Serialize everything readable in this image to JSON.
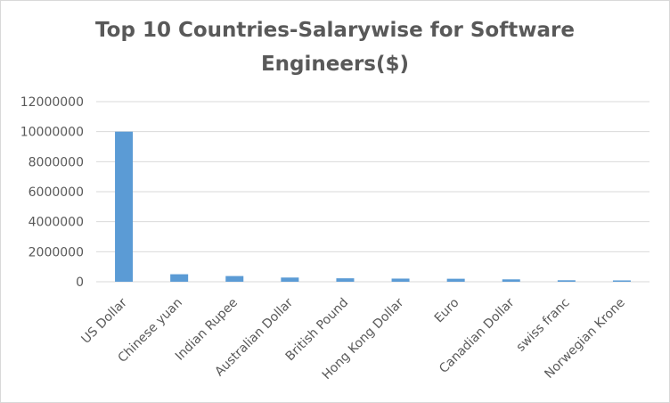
{
  "chart_data": {
    "type": "bar",
    "title": "Top 10 Countries-Salarywise for Software Engineers($)",
    "xlabel": "",
    "ylabel": "",
    "ylim": [
      0,
      12000000
    ],
    "yticks": [
      0,
      2000000,
      4000000,
      6000000,
      8000000,
      10000000,
      12000000
    ],
    "ytick_labels": [
      "0",
      "2000000",
      "4000000",
      "6000000",
      "8000000",
      "10000000",
      "12000000"
    ],
    "grid": true,
    "bar_color": "#5b9bd5",
    "categories": [
      "US Dollar",
      "Chinese yuan",
      "Indian Rupee",
      "Australian Dollar",
      "British Pound",
      "Hong Kong Dollar",
      "Euro",
      "Canadian Dollar",
      "swiss franc",
      "Norwegian Krone"
    ],
    "values": [
      10000000,
      500000,
      380000,
      280000,
      230000,
      210000,
      200000,
      160000,
      100000,
      90000
    ]
  }
}
